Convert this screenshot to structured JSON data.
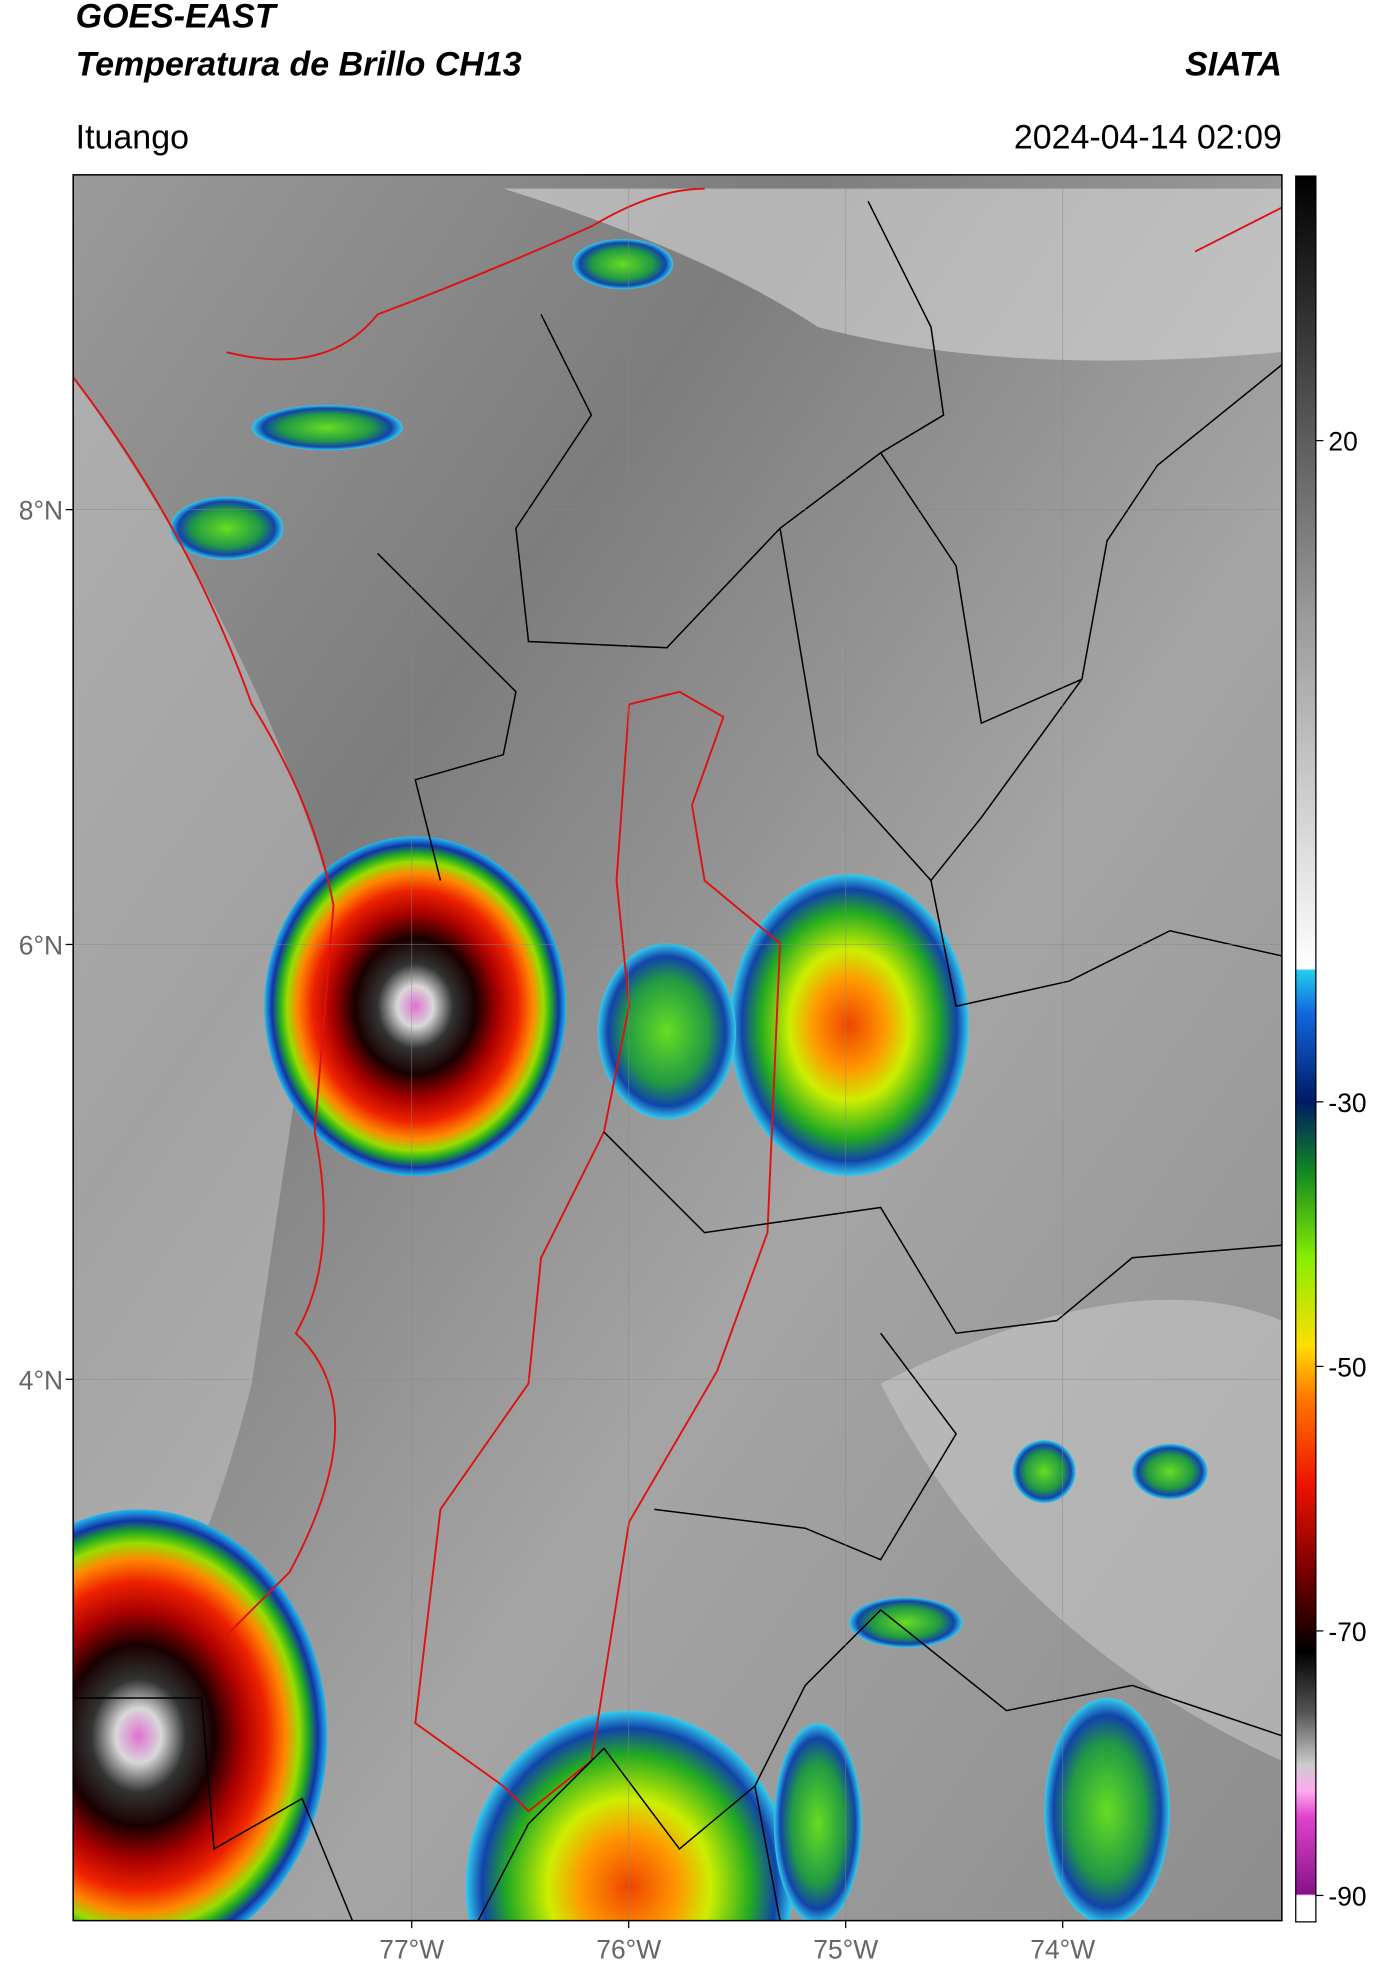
{
  "header": {
    "title": "GOES-EAST",
    "subtitle": "Temperatura de Brillo CH13",
    "agency": "SIATA",
    "location": "Ituango",
    "datetime": "2024-04-14 02:09"
  },
  "map": {
    "lon_range": [
      -78.56,
      -72.99
    ],
    "lat_range": [
      1.51,
      9.54
    ],
    "lat_ticks": [
      {
        "value": 8,
        "label": "8°N"
      },
      {
        "value": 6,
        "label": "6°N"
      },
      {
        "value": 4,
        "label": "4°N"
      }
    ],
    "lon_ticks": [
      {
        "value": -77,
        "label": "77°W"
      },
      {
        "value": -76,
        "label": "76°W"
      },
      {
        "value": -75,
        "label": "75°W"
      },
      {
        "value": -74,
        "label": "74°W"
      }
    ]
  },
  "colorbar": {
    "lim": [
      -92,
      40
    ],
    "ticks": [
      20,
      -30,
      -50,
      -70,
      -90
    ]
  }
}
